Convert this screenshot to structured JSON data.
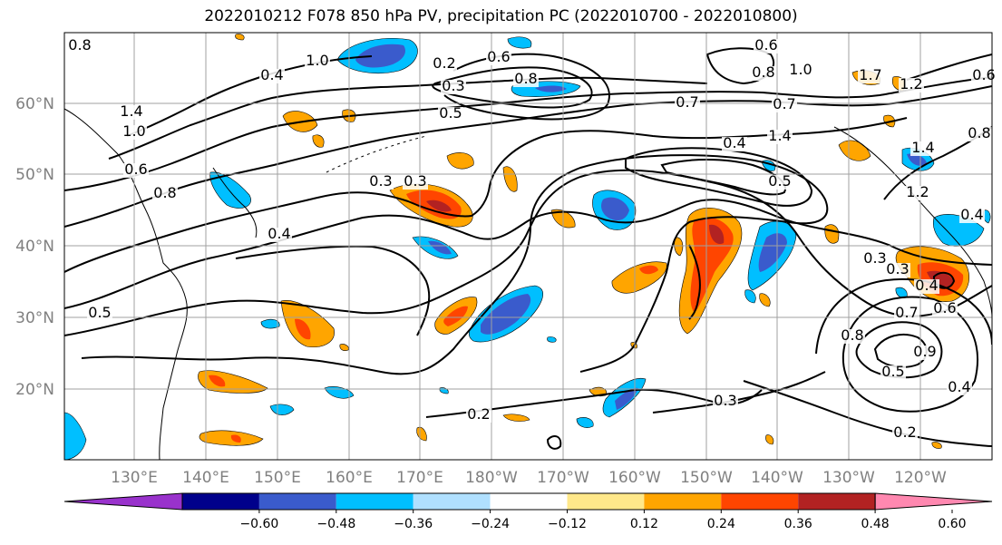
{
  "title": "2022010212 F078 850 hPa PV, precipitation PC (2022010700 - 2022010800)",
  "lat_labels": [
    "60°N",
    "50°N",
    "40°N",
    "30°N",
    "20°N"
  ],
  "lon_labels": [
    "130°E",
    "140°E",
    "150°E",
    "160°E",
    "170°E",
    "180°W",
    "170°W",
    "160°W",
    "150°W",
    "140°W",
    "130°W",
    "120°W"
  ],
  "contour_labels": [
    "0.8",
    "1.4",
    "1.0",
    "0.6",
    "0.8",
    "1.0",
    "0.4",
    "0.2",
    "0.6",
    "0.3",
    "0.3",
    "0.4",
    "0.3",
    "0.5",
    "0.8",
    "0.7",
    "0.4",
    "0.5",
    "0.7",
    "0.8",
    "0.6",
    "1.0",
    "1.4",
    "1.7",
    "1.2",
    "0.6",
    "0.8",
    "1.4",
    "1.2",
    "0.4",
    "0.3",
    "0.3",
    "0.4",
    "0.6",
    "0.7",
    "0.8",
    "0.9",
    "0.5",
    "0.4",
    "0.3",
    "0.2",
    "0.2",
    "0.5"
  ],
  "colorbar": {
    "ticks": [
      "−0.60",
      "−0.48",
      "−0.36",
      "−0.24",
      "−0.12",
      "0.12",
      "0.24",
      "0.36",
      "0.48",
      "0.60"
    ],
    "colors": [
      "#9932cc",
      "#00008b",
      "#3a5bcc",
      "#00bfff",
      "#b0e0ff",
      "#ffffff",
      "#ffe88a",
      "#ffa500",
      "#ff4500",
      "#b22222",
      "#ff88b0"
    ]
  },
  "colors": {
    "neg_strong": "#3a5bcc",
    "neg_mid": "#00bfff",
    "neg_weak": "#b0e0ff",
    "pos_weak": "#ffe88a",
    "pos_mid": "#ffa500",
    "pos_strong": "#ff4500",
    "pos_max": "#b22222",
    "contour": "#000000",
    "grid": "#a0a0a0"
  }
}
